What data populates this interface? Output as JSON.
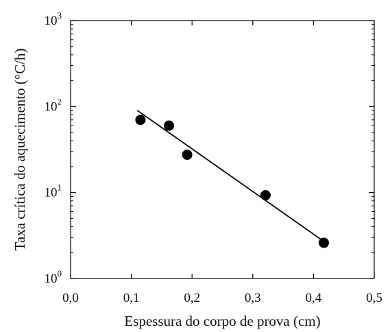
{
  "chart_data": {
    "type": "scatter",
    "title": "",
    "xlabel": "Espessura do corpo de prova (cm)",
    "ylabel": "Taxa crítica do aquecimento (°C/h)",
    "xlim": [
      0.0,
      0.5
    ],
    "ylim": [
      1,
      1000
    ],
    "y_scale": "log",
    "grid": false,
    "legend": "none",
    "x_ticks": [
      "0,0",
      "0,1",
      "0,2",
      "0,3",
      "0,4",
      "0,5"
    ],
    "x_tick_values": [
      0.0,
      0.1,
      0.2,
      0.3,
      0.4,
      0.5
    ],
    "y_ticks": [
      {
        "base": "10",
        "exp": "0",
        "value": 1
      },
      {
        "base": "10",
        "exp": "1",
        "value": 10
      },
      {
        "base": "10",
        "exp": "2",
        "value": 100
      },
      {
        "base": "10",
        "exp": "3",
        "value": 1000
      }
    ],
    "series": [
      {
        "kind": "points",
        "x": [
          0.115,
          0.162,
          0.192,
          0.321,
          0.417
        ],
        "y": [
          70,
          60,
          27.5,
          9.3,
          2.6
        ]
      },
      {
        "kind": "fit-line",
        "x": [
          0.11,
          0.417
        ],
        "y": [
          90,
          2.7
        ]
      }
    ],
    "colors": {
      "marker": "#000000",
      "line": "#000000",
      "axis": "#000000"
    }
  }
}
